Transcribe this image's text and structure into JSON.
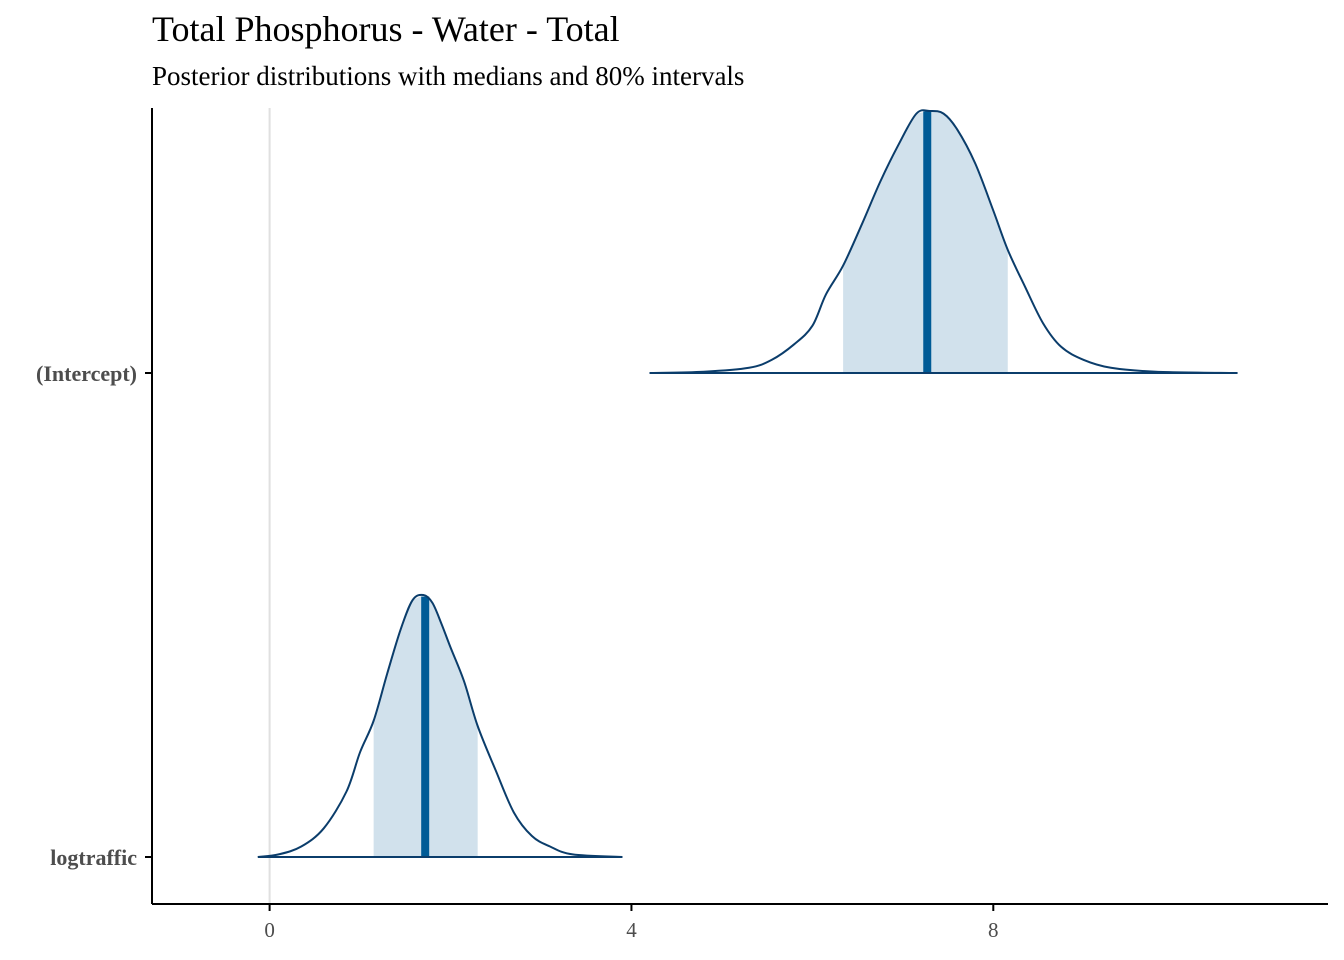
{
  "chart_data": {
    "type": "area",
    "title": "Total Phosphorus - Water - Total",
    "subtitle": "Posterior distributions with medians and 80% intervals",
    "xlabel": "",
    "ylabel": "",
    "xlim": [
      -1.3,
      11.7
    ],
    "x_ticks": [
      0,
      4,
      8
    ],
    "x_tick_labels": [
      "0",
      "4",
      "8"
    ],
    "reference_line_x": 0,
    "grid": false,
    "colors": {
      "outline": "#0b3d6b",
      "interval_fill": "#d1e1ec",
      "median": "#005b96",
      "reference_line": "#e0e0e0",
      "axis": "#000000",
      "tick_label": "#4d4d4d"
    },
    "series": [
      {
        "name": "(Intercept)",
        "median": 7.27,
        "interval_80": [
          6.34,
          8.16
        ],
        "range": [
          4.2,
          10.7
        ],
        "density": [
          [
            4.2,
            0.0
          ],
          [
            4.8,
            0.005
          ],
          [
            5.3,
            0.02
          ],
          [
            5.55,
            0.05
          ],
          [
            5.8,
            0.11
          ],
          [
            6.0,
            0.18
          ],
          [
            6.15,
            0.3
          ],
          [
            6.34,
            0.41
          ],
          [
            6.55,
            0.57
          ],
          [
            6.75,
            0.73
          ],
          [
            6.95,
            0.87
          ],
          [
            7.15,
            0.99
          ],
          [
            7.3,
            1.0
          ],
          [
            7.45,
            0.99
          ],
          [
            7.6,
            0.93
          ],
          [
            7.8,
            0.8
          ],
          [
            8.0,
            0.62
          ],
          [
            8.16,
            0.47
          ],
          [
            8.35,
            0.33
          ],
          [
            8.55,
            0.19
          ],
          [
            8.75,
            0.1
          ],
          [
            9.0,
            0.05
          ],
          [
            9.3,
            0.02
          ],
          [
            9.8,
            0.005
          ],
          [
            10.7,
            0.0
          ]
        ]
      },
      {
        "name": "logtraffic",
        "median": 1.72,
        "interval_80": [
          1.15,
          2.3
        ],
        "range": [
          -0.13,
          3.9
        ],
        "density": [
          [
            -0.13,
            0.0
          ],
          [
            0.1,
            0.01
          ],
          [
            0.35,
            0.04
          ],
          [
            0.6,
            0.11
          ],
          [
            0.85,
            0.25
          ],
          [
            1.0,
            0.4
          ],
          [
            1.15,
            0.52
          ],
          [
            1.3,
            0.7
          ],
          [
            1.45,
            0.87
          ],
          [
            1.58,
            0.98
          ],
          [
            1.7,
            1.0
          ],
          [
            1.8,
            0.97
          ],
          [
            1.9,
            0.89
          ],
          [
            2.0,
            0.8
          ],
          [
            2.15,
            0.67
          ],
          [
            2.3,
            0.5
          ],
          [
            2.5,
            0.33
          ],
          [
            2.7,
            0.17
          ],
          [
            2.9,
            0.08
          ],
          [
            3.1,
            0.04
          ],
          [
            3.35,
            0.01
          ],
          [
            3.9,
            0.0
          ]
        ]
      }
    ]
  }
}
